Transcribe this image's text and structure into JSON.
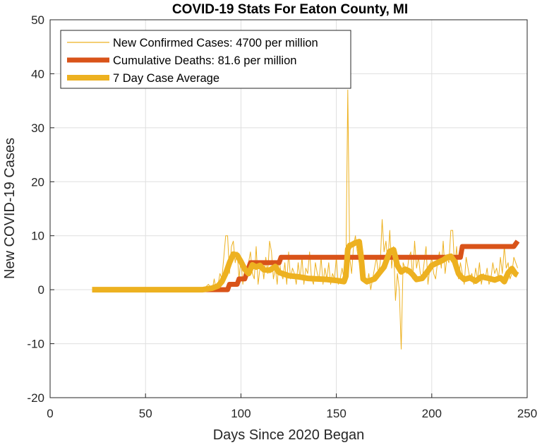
{
  "chart_data": {
    "type": "line",
    "title": "COVID-19 Stats For Eaton County, MI",
    "xlabel": "Days Since 2020 Began",
    "ylabel": "New COVID-19 Cases",
    "xlim": [
      0,
      250
    ],
    "ylim": [
      -20,
      50
    ],
    "xticks": [
      0,
      50,
      100,
      150,
      200,
      250
    ],
    "yticks": [
      -20,
      -10,
      0,
      10,
      20,
      30,
      40,
      50
    ],
    "grid": true,
    "legend_position": "top-left",
    "series": [
      {
        "name": "New Confirmed Cases: 4700 per million",
        "color": "#EDB120",
        "style": "thin",
        "x": [
          22,
          30,
          40,
          50,
          60,
          70,
          75,
          80,
          83,
          85,
          86,
          87,
          88,
          89,
          90,
          91,
          92,
          93,
          94,
          95,
          96,
          97,
          98,
          99,
          100,
          101,
          102,
          103,
          104,
          105,
          106,
          107,
          108,
          109,
          110,
          111,
          112,
          113,
          114,
          115,
          116,
          117,
          118,
          119,
          120,
          121,
          122,
          123,
          124,
          125,
          126,
          127,
          128,
          129,
          130,
          131,
          132,
          133,
          134,
          135,
          136,
          137,
          138,
          139,
          140,
          141,
          142,
          143,
          144,
          145,
          146,
          147,
          148,
          149,
          150,
          151,
          152,
          153,
          154,
          155,
          156,
          157,
          158,
          159,
          160,
          161,
          162,
          163,
          164,
          165,
          166,
          167,
          168,
          169,
          170,
          171,
          172,
          173,
          174,
          175,
          176,
          177,
          178,
          179,
          180,
          181,
          182,
          183,
          184,
          185,
          186,
          187,
          188,
          189,
          190,
          191,
          192,
          193,
          194,
          195,
          196,
          197,
          198,
          199,
          200,
          201,
          202,
          203,
          204,
          205,
          206,
          207,
          208,
          209,
          210,
          211,
          212,
          213,
          214,
          215,
          216,
          217,
          218,
          219,
          220,
          221,
          222,
          223,
          224,
          225,
          226,
          227,
          228,
          229,
          230,
          231,
          232,
          233,
          234,
          235,
          236,
          237,
          238,
          239,
          240,
          241,
          242,
          243,
          244,
          245
        ],
        "y": [
          0,
          0,
          0,
          0,
          0,
          0,
          0,
          0,
          1,
          0,
          2,
          0,
          1,
          3,
          2,
          6,
          10,
          10,
          3,
          8,
          9,
          5,
          7,
          2,
          6,
          1,
          4,
          2,
          5,
          7,
          3,
          2,
          8,
          1,
          4,
          5,
          2,
          6,
          3,
          9,
          7,
          2,
          4,
          1,
          6,
          3,
          2,
          5,
          1,
          7,
          2,
          4,
          3,
          1,
          5,
          2,
          6,
          1,
          4,
          3,
          7,
          2,
          1,
          5,
          3,
          2,
          6,
          1,
          4,
          2,
          5,
          1,
          3,
          2,
          6,
          1,
          2,
          4,
          2,
          3,
          37,
          6,
          3,
          8,
          10,
          7,
          5,
          9,
          4,
          2,
          1,
          3,
          0,
          2,
          4,
          6,
          3,
          5,
          13,
          7,
          9,
          5,
          11,
          4,
          8,
          -2,
          3,
          0,
          -11,
          5,
          4,
          3,
          6,
          7,
          2,
          9,
          4,
          6,
          3,
          2,
          5,
          8,
          1,
          4,
          6,
          3,
          2,
          5,
          7,
          4,
          9,
          3,
          6,
          5,
          11,
          11,
          4,
          8,
          2,
          5,
          3,
          1,
          6,
          4,
          2,
          3,
          1,
          4,
          2,
          5,
          1,
          3,
          2,
          4,
          1,
          2,
          5,
          3,
          4,
          2,
          6,
          3,
          8,
          4,
          5,
          2,
          3,
          6,
          5,
          4
        ]
      },
      {
        "name": "Cumulative Deaths: 81.6 per million",
        "color": "#D95319",
        "style": "thick",
        "x": [
          22,
          80,
          81,
          93,
          94,
          98,
          99,
          102,
          103,
          104,
          105,
          120,
          121,
          215,
          216,
          243,
          244,
          245
        ],
        "y": [
          0,
          0,
          0,
          0,
          1,
          1,
          2,
          2,
          3,
          4,
          5,
          5,
          6,
          6,
          8,
          8,
          8.5,
          9
        ]
      },
      {
        "name": "7 Day Case Average",
        "color": "#EDB120",
        "style": "thicker",
        "x": [
          22,
          80,
          85,
          88,
          90,
          92,
          94,
          96,
          98,
          100,
          102,
          104,
          106,
          108,
          110,
          112,
          115,
          118,
          120,
          125,
          130,
          135,
          140,
          145,
          150,
          154,
          155,
          156,
          157,
          158,
          160,
          162,
          163,
          164,
          166,
          170,
          175,
          178,
          180,
          181,
          182,
          184,
          186,
          188,
          190,
          192,
          195,
          198,
          200,
          203,
          206,
          208,
          210,
          212,
          214,
          215,
          217,
          220,
          223,
          226,
          230,
          233,
          236,
          238,
          240,
          242,
          244,
          245
        ],
        "y": [
          0,
          0,
          0.3,
          0.7,
          1.5,
          3,
          5,
          6.6,
          6.4,
          5.2,
          3.8,
          3,
          4.6,
          4.2,
          4.5,
          3.7,
          3.6,
          4.3,
          3.2,
          2.6,
          2.4,
          2.1,
          2,
          1.9,
          1.7,
          1.5,
          2.5,
          7.5,
          8.2,
          8.3,
          8.7,
          8.9,
          6,
          2,
          1.5,
          2,
          4.2,
          7.1,
          7.4,
          6,
          4.5,
          3.3,
          3.8,
          3.5,
          2.8,
          1.9,
          2.1,
          3.5,
          4.5,
          5,
          5.5,
          6,
          6.2,
          5.2,
          3,
          2.5,
          1.9,
          2.2,
          1.6,
          2.4,
          2.1,
          1.8,
          2.2,
          1.5,
          3.1,
          3.9,
          2.9,
          2.7
        ]
      }
    ]
  }
}
